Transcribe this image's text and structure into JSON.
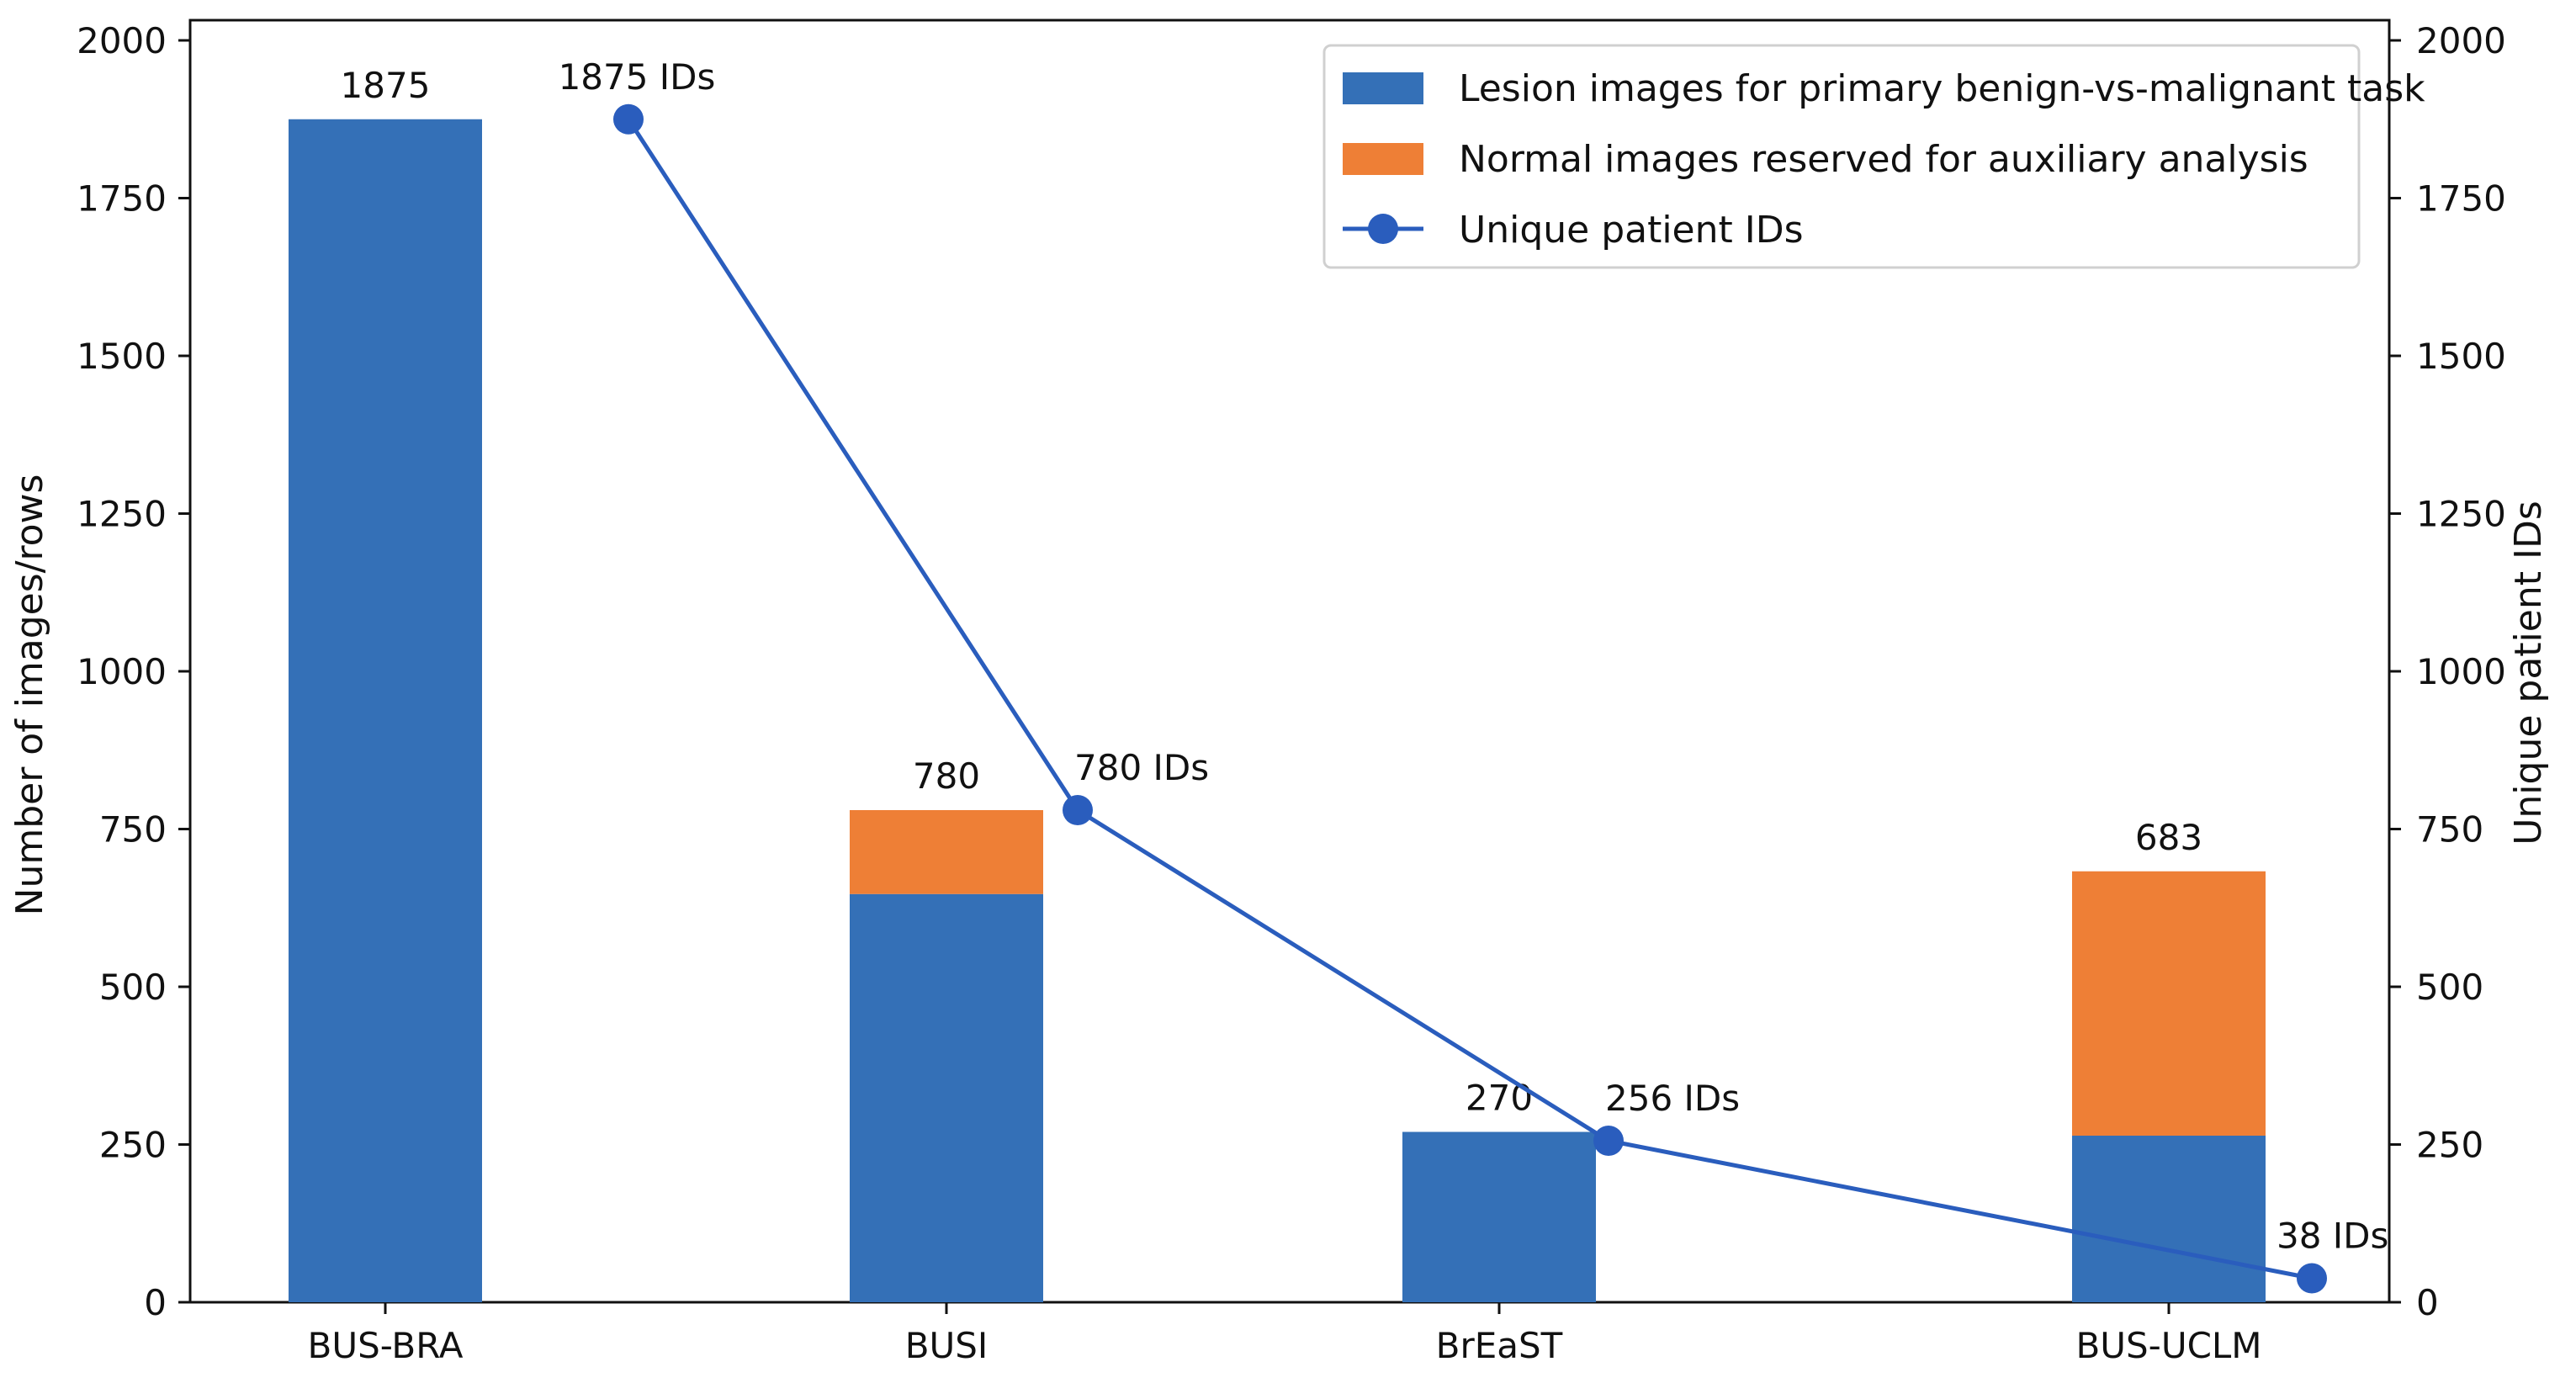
{
  "chart_data": {
    "type": "bar",
    "stacked": true,
    "categories": [
      "BUS-BRA",
      "BUSI",
      "BrEaST",
      "BUS-UCLM"
    ],
    "series": [
      {
        "name": "Lesion images for primary benign-vs-malignant task",
        "kind": "bar",
        "axis": "left",
        "color": "#3470b7",
        "values": [
          1875,
          647,
          270,
          264
        ]
      },
      {
        "name": "Normal images reserved for auxiliary analysis",
        "kind": "bar",
        "axis": "left",
        "color": "#ee7f36",
        "values": [
          0,
          133,
          0,
          419
        ]
      },
      {
        "name": "Unique patient IDs",
        "kind": "line",
        "axis": "right",
        "color": "#2a5dbd",
        "values": [
          1875,
          780,
          256,
          38
        ]
      }
    ],
    "bar_totals": [
      "1875",
      "780",
      "270",
      "683"
    ],
    "line_labels": [
      "1875 IDs",
      "780 IDs",
      "256 IDs",
      "38 IDs"
    ],
    "ylabel": "Number of images/rows",
    "y2label": "Unique patient IDs",
    "xlabel": "",
    "ylim": [
      0,
      2000
    ],
    "y2lim": [
      0,
      2000
    ],
    "yticks": [
      0,
      250,
      500,
      750,
      1000,
      1250,
      1500,
      1750,
      2000
    ],
    "grid": false,
    "legend_position": "top-right"
  }
}
